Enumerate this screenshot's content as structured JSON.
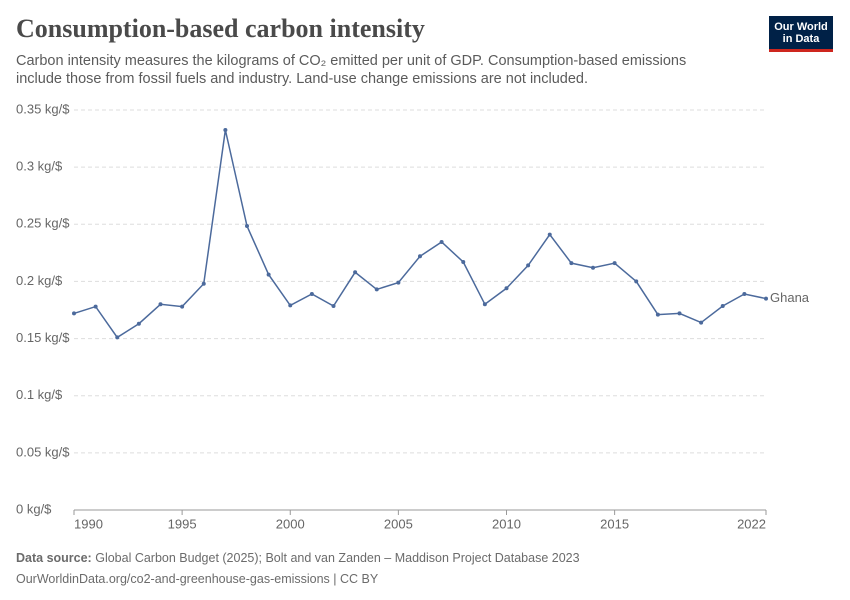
{
  "chart_data": {
    "type": "line",
    "title": "Consumption-based carbon intensity",
    "subtitle": "Carbon intensity measures the kilograms of CO₂ emitted per unit of GDP. Consumption-based emissions include those from fossil fuels and industry. Land-use change emissions are not included.",
    "logo": [
      "Our World",
      "in Data"
    ],
    "source_label": "Data source:",
    "source": "Global Carbon Budget (2025); Bolt and van Zanden – Maddison Project Database 2023",
    "url": "OurWorldinData.org/co2-and-greenhouse-gas-emissions | CC BY",
    "x": [
      1990,
      1991,
      1992,
      1993,
      1994,
      1995,
      1996,
      1997,
      1998,
      1999,
      2000,
      2001,
      2002,
      2003,
      2004,
      2005,
      2006,
      2007,
      2008,
      2009,
      2010,
      2011,
      2012,
      2013,
      2014,
      2015,
      2016,
      2017,
      2018,
      2019,
      2020,
      2021,
      2022
    ],
    "series": [
      {
        "name": "Ghana",
        "color": "#4c6a9c",
        "values": [
          0.172,
          0.178,
          0.151,
          0.163,
          0.18,
          0.178,
          0.198,
          0.3325,
          0.2485,
          0.206,
          0.179,
          0.189,
          0.1785,
          0.208,
          0.193,
          0.199,
          0.222,
          0.2345,
          0.217,
          0.18,
          0.194,
          0.214,
          0.241,
          0.216,
          0.212,
          0.216,
          0.2,
          0.171,
          0.172,
          0.164,
          0.1785,
          0.189,
          0.185
        ]
      }
    ],
    "xlim": [
      1990,
      2022
    ],
    "xticks": [
      1990,
      1995,
      2000,
      2005,
      2010,
      2015,
      2022
    ],
    "ylim": [
      0,
      0.35
    ],
    "yticks": [
      {
        "value": 0,
        "label": "0 kg/$"
      },
      {
        "value": 0.05,
        "label": "0.05 kg/$"
      },
      {
        "value": 0.1,
        "label": "0.1 kg/$"
      },
      {
        "value": 0.15,
        "label": "0.15 kg/$"
      },
      {
        "value": 0.2,
        "label": "0.2 kg/$"
      },
      {
        "value": 0.25,
        "label": "0.25 kg/$"
      },
      {
        "value": 0.3,
        "label": "0.3 kg/$"
      },
      {
        "value": 0.35,
        "label": "0.35 kg/$"
      }
    ],
    "grid": true
  }
}
